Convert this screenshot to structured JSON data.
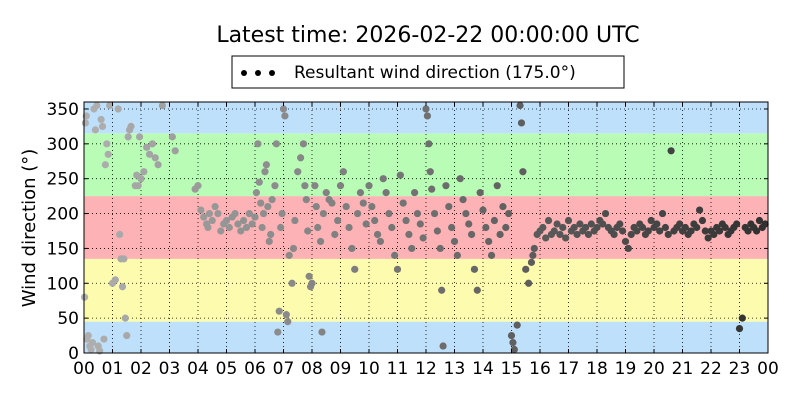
{
  "chart_data": {
    "type": "scatter",
    "title": "Latest time: 2026-02-22 00:00:00 UTC",
    "xlabel": "",
    "ylabel": "Wind direction (°)",
    "xlim": [
      0,
      24
    ],
    "ylim": [
      0,
      360
    ],
    "x_unit": "hour of day (UTC)",
    "x_ticks": [
      "00",
      "01",
      "02",
      "03",
      "04",
      "05",
      "06",
      "07",
      "08",
      "09",
      "10",
      "11",
      "12",
      "13",
      "14",
      "15",
      "16",
      "17",
      "18",
      "19",
      "20",
      "21",
      "22",
      "23",
      "00"
    ],
    "y_ticks": [
      0,
      50,
      100,
      150,
      200,
      250,
      300,
      350
    ],
    "grid": true,
    "grid_style": "dotted",
    "legend": {
      "placement": "top-center",
      "entries": [
        {
          "label": "Resultant wind direction (175.0°)",
          "marker": "dots",
          "color": "#000000"
        }
      ]
    },
    "bands": [
      {
        "from": 0,
        "to": 45,
        "color": "#bfe0fb"
      },
      {
        "from": 45,
        "to": 135,
        "color": "#fdfcae"
      },
      {
        "from": 135,
        "to": 225,
        "color": "#fdb3b6"
      },
      {
        "from": 225,
        "to": 315,
        "color": "#b9fcb6"
      },
      {
        "from": 315,
        "to": 360,
        "color": "#bfe0fb"
      }
    ],
    "series": [
      {
        "name": "Resultant wind direction (175.0°)",
        "marker": "circle",
        "color_old": "#b0b0b0",
        "color_new": "#303030",
        "points": [
          [
            0.02,
            80
          ],
          [
            0.05,
            330
          ],
          [
            0.08,
            340
          ],
          [
            0.1,
            20
          ],
          [
            0.15,
            25
          ],
          [
            0.2,
            10
          ],
          [
            0.25,
            5
          ],
          [
            0.3,
            15
          ],
          [
            0.35,
            350
          ],
          [
            0.4,
            320
          ],
          [
            0.45,
            355
          ],
          [
            0.5,
            10
          ],
          [
            0.55,
            3
          ],
          [
            0.6,
            335
          ],
          [
            0.65,
            325
          ],
          [
            0.7,
            20
          ],
          [
            0.75,
            270
          ],
          [
            0.8,
            300
          ],
          [
            0.85,
            285
          ],
          [
            0.9,
            355
          ],
          [
            1.0,
            100
          ],
          [
            1.1,
            105
          ],
          [
            1.2,
            350
          ],
          [
            1.25,
            170
          ],
          [
            1.3,
            135
          ],
          [
            1.35,
            95
          ],
          [
            1.4,
            135
          ],
          [
            1.45,
            50
          ],
          [
            1.5,
            25
          ],
          [
            1.55,
            310
          ],
          [
            1.6,
            320
          ],
          [
            1.65,
            325
          ],
          [
            1.8,
            240
          ],
          [
            1.85,
            255
          ],
          [
            1.9,
            240
          ],
          [
            1.95,
            310
          ],
          [
            2.0,
            250
          ],
          [
            2.1,
            260
          ],
          [
            2.2,
            295
          ],
          [
            2.3,
            285
          ],
          [
            2.4,
            300
          ],
          [
            2.5,
            280
          ],
          [
            2.6,
            270
          ],
          [
            2.75,
            355
          ],
          [
            3.1,
            310
          ],
          [
            3.2,
            290
          ],
          [
            3.9,
            235
          ],
          [
            4.0,
            240
          ],
          [
            4.1,
            205
          ],
          [
            4.2,
            195
          ],
          [
            4.3,
            185
          ],
          [
            4.35,
            180
          ],
          [
            4.4,
            200
          ],
          [
            4.5,
            190
          ],
          [
            4.6,
            210
          ],
          [
            4.7,
            200
          ],
          [
            4.8,
            175
          ],
          [
            4.9,
            185
          ],
          [
            5.0,
            190
          ],
          [
            5.1,
            180
          ],
          [
            5.2,
            195
          ],
          [
            5.3,
            200
          ],
          [
            5.4,
            185
          ],
          [
            5.5,
            175
          ],
          [
            5.6,
            190
          ],
          [
            5.7,
            180
          ],
          [
            5.8,
            200
          ],
          [
            5.9,
            185
          ],
          [
            6.0,
            195
          ],
          [
            6.05,
            230
          ],
          [
            6.1,
            300
          ],
          [
            6.15,
            245
          ],
          [
            6.2,
            215
          ],
          [
            6.25,
            180
          ],
          [
            6.3,
            200
          ],
          [
            6.35,
            260
          ],
          [
            6.4,
            270
          ],
          [
            6.45,
            210
          ],
          [
            6.5,
            160
          ],
          [
            6.55,
            170
          ],
          [
            6.6,
            220
          ],
          [
            6.7,
            240
          ],
          [
            6.75,
            300
          ],
          [
            6.8,
            30
          ],
          [
            6.85,
            60
          ],
          [
            6.9,
            180
          ],
          [
            6.95,
            200
          ],
          [
            7.0,
            350
          ],
          [
            7.05,
            340
          ],
          [
            7.1,
            55
          ],
          [
            7.15,
            45
          ],
          [
            7.2,
            140
          ],
          [
            7.3,
            100
          ],
          [
            7.35,
            150
          ],
          [
            7.4,
            190
          ],
          [
            7.5,
            260
          ],
          [
            7.6,
            280
          ],
          [
            7.7,
            300
          ],
          [
            7.75,
            240
          ],
          [
            7.8,
            220
          ],
          [
            7.85,
            175
          ],
          [
            7.9,
            110
          ],
          [
            7.95,
            95
          ],
          [
            8.0,
            100
          ],
          [
            8.1,
            240
          ],
          [
            8.15,
            210
          ],
          [
            8.2,
            180
          ],
          [
            8.3,
            160
          ],
          [
            8.35,
            30
          ],
          [
            8.4,
            200
          ],
          [
            8.5,
            230
          ],
          [
            8.6,
            220
          ],
          [
            8.7,
            215
          ],
          [
            8.8,
            170
          ],
          [
            8.9,
            190
          ],
          [
            9.0,
            240
          ],
          [
            9.1,
            260
          ],
          [
            9.2,
            210
          ],
          [
            9.3,
            180
          ],
          [
            9.4,
            150
          ],
          [
            9.5,
            120
          ],
          [
            9.6,
            200
          ],
          [
            9.7,
            230
          ],
          [
            9.8,
            215
          ],
          [
            9.9,
            185
          ],
          [
            10.0,
            240
          ],
          [
            10.1,
            210
          ],
          [
            10.2,
            190
          ],
          [
            10.3,
            170
          ],
          [
            10.4,
            160
          ],
          [
            10.5,
            250
          ],
          [
            10.6,
            230
          ],
          [
            10.7,
            200
          ],
          [
            10.8,
            180
          ],
          [
            10.9,
            140
          ],
          [
            11.0,
            120
          ],
          [
            11.1,
            255
          ],
          [
            11.2,
            215
          ],
          [
            11.3,
            190
          ],
          [
            11.4,
            170
          ],
          [
            11.5,
            150
          ],
          [
            11.6,
            230
          ],
          [
            11.7,
            200
          ],
          [
            11.8,
            185
          ],
          [
            11.9,
            165
          ],
          [
            12.0,
            350
          ],
          [
            12.05,
            340
          ],
          [
            12.1,
            300
          ],
          [
            12.15,
            260
          ],
          [
            12.2,
            235
          ],
          [
            12.3,
            200
          ],
          [
            12.4,
            175
          ],
          [
            12.5,
            150
          ],
          [
            12.55,
            90
          ],
          [
            12.6,
            10
          ],
          [
            12.7,
            240
          ],
          [
            12.8,
            210
          ],
          [
            12.9,
            180
          ],
          [
            13.0,
            160
          ],
          [
            13.1,
            140
          ],
          [
            13.2,
            250
          ],
          [
            13.3,
            220
          ],
          [
            13.4,
            200
          ],
          [
            13.5,
            185
          ],
          [
            13.6,
            170
          ],
          [
            13.7,
            120
          ],
          [
            13.8,
            90
          ],
          [
            13.9,
            230
          ],
          [
            14.0,
            205
          ],
          [
            14.1,
            180
          ],
          [
            14.2,
            160
          ],
          [
            14.3,
            140
          ],
          [
            14.4,
            190
          ],
          [
            14.5,
            240
          ],
          [
            14.6,
            170
          ],
          [
            14.7,
            210
          ],
          [
            14.8,
            180
          ],
          [
            14.9,
            200
          ],
          [
            15.0,
            25
          ],
          [
            15.05,
            15
          ],
          [
            15.1,
            5
          ],
          [
            15.2,
            40
          ],
          [
            15.3,
            355
          ],
          [
            15.35,
            330
          ],
          [
            15.4,
            260
          ],
          [
            15.5,
            120
          ],
          [
            15.6,
            100
          ],
          [
            15.7,
            130
          ],
          [
            15.75,
            140
          ],
          [
            15.8,
            150
          ],
          [
            15.9,
            170
          ],
          [
            16.0,
            175
          ],
          [
            16.1,
            180
          ],
          [
            16.2,
            165
          ],
          [
            16.3,
            190
          ],
          [
            16.4,
            170
          ],
          [
            16.5,
            175
          ],
          [
            16.6,
            185
          ],
          [
            16.7,
            170
          ],
          [
            16.8,
            180
          ],
          [
            16.9,
            165
          ],
          [
            17.0,
            190
          ],
          [
            17.1,
            175
          ],
          [
            17.2,
            180
          ],
          [
            17.3,
            170
          ],
          [
            17.4,
            185
          ],
          [
            17.5,
            175
          ],
          [
            17.6,
            180
          ],
          [
            17.7,
            170
          ],
          [
            17.8,
            185
          ],
          [
            17.9,
            175
          ],
          [
            18.0,
            180
          ],
          [
            18.1,
            190
          ],
          [
            18.2,
            185
          ],
          [
            18.3,
            200
          ],
          [
            18.4,
            180
          ],
          [
            18.5,
            175
          ],
          [
            18.6,
            170
          ],
          [
            18.7,
            180
          ],
          [
            18.8,
            185
          ],
          [
            18.9,
            175
          ],
          [
            19.0,
            160
          ],
          [
            19.1,
            150
          ],
          [
            19.2,
            170
          ],
          [
            19.3,
            180
          ],
          [
            19.4,
            175
          ],
          [
            19.5,
            185
          ],
          [
            19.6,
            180
          ],
          [
            19.7,
            170
          ],
          [
            19.8,
            175
          ],
          [
            19.9,
            190
          ],
          [
            20.0,
            180
          ],
          [
            20.1,
            185
          ],
          [
            20.2,
            175
          ],
          [
            20.3,
            200
          ],
          [
            20.4,
            180
          ],
          [
            20.5,
            170
          ],
          [
            20.6,
            290
          ],
          [
            20.7,
            175
          ],
          [
            20.8,
            180
          ],
          [
            20.9,
            185
          ],
          [
            21.0,
            175
          ],
          [
            21.1,
            180
          ],
          [
            21.2,
            170
          ],
          [
            21.3,
            175
          ],
          [
            21.4,
            185
          ],
          [
            21.5,
            180
          ],
          [
            21.6,
            205
          ],
          [
            21.7,
            190
          ],
          [
            21.8,
            175
          ],
          [
            21.9,
            165
          ],
          [
            22.0,
            175
          ],
          [
            22.1,
            170
          ],
          [
            22.2,
            180
          ],
          [
            22.3,
            175
          ],
          [
            22.4,
            185
          ],
          [
            22.5,
            180
          ],
          [
            22.6,
            170
          ],
          [
            22.7,
            175
          ],
          [
            22.8,
            180
          ],
          [
            22.9,
            185
          ],
          [
            23.0,
            35
          ],
          [
            23.1,
            50
          ],
          [
            23.2,
            180
          ],
          [
            23.3,
            175
          ],
          [
            23.4,
            185
          ],
          [
            23.5,
            180
          ],
          [
            23.6,
            175
          ],
          [
            23.7,
            190
          ],
          [
            23.8,
            180
          ],
          [
            23.9,
            185
          ]
        ]
      }
    ]
  }
}
